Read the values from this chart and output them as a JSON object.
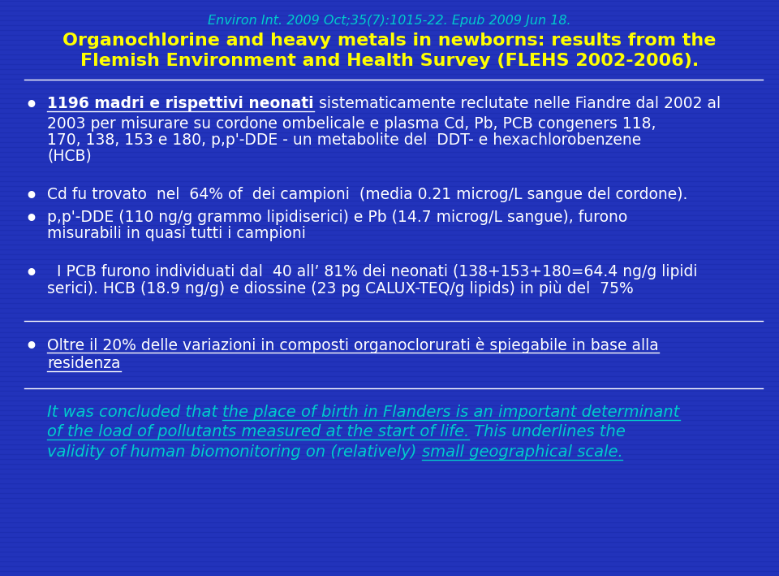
{
  "bg_color": "#2233bb",
  "stripe_color": "#1a2aaa",
  "header_ref": "Environ Int. 2009 Oct;35(7):1015-22. Epub 2009 Jun 18.",
  "header_ref_color": "#00dddd",
  "title_line1": "Organochlorine and heavy metals in newborns: results from the",
  "title_line2": "Flemish Environment and Health Survey (FLEHS 2002-2006).",
  "title_color": "#ffff00",
  "white": "#ffffff",
  "cyan": "#00cccc",
  "figsize": [
    9.6,
    7.09
  ],
  "dpi": 100
}
